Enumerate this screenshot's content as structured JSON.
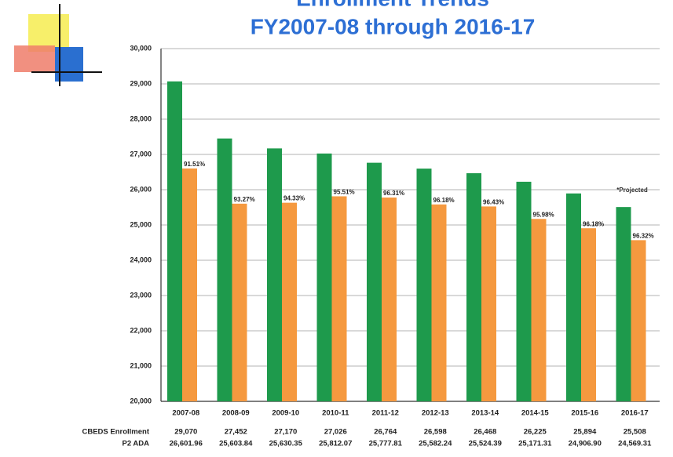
{
  "chart_data": {
    "type": "bar",
    "title": "Enrollment Trends",
    "subtitle": "FY2007-08 through 2016-17",
    "categories": [
      "2007-08",
      "2008-09",
      "2009-10",
      "2010-11",
      "2011-12",
      "2012-13",
      "2013-14",
      "2014-15",
      "2015-16",
      "2016-17"
    ],
    "series": [
      {
        "name": "CBEDS Enrollment",
        "color": "#1e9a4c",
        "values": [
          29070,
          27452,
          27170,
          27026,
          26764,
          26598,
          26468,
          26225,
          25894,
          25508
        ],
        "value_labels": [
          "29,070",
          "27,452",
          "27,170",
          "27,026",
          "26,764",
          "26,598",
          "26,468",
          "26,225",
          "25,894",
          "25,508"
        ]
      },
      {
        "name": "P2 ADA",
        "color": "#f5993f",
        "values": [
          26601.96,
          25603.84,
          25630.35,
          25812.07,
          25777.81,
          25582.24,
          25524.39,
          25171.31,
          24906.9,
          24569.31
        ],
        "value_labels": [
          "26,601.96",
          "25,603.84",
          "25,630.35",
          "25,812.07",
          "25,777.81",
          "25,582.24",
          "25,524.39",
          "25,171.31",
          "24,906.90",
          "24,569.31"
        ]
      }
    ],
    "ratio_labels": [
      "91.51%",
      "93.27%",
      "94.33%",
      "95.51%",
      "96.31%",
      "96.18%",
      "96.43%",
      "95.98%",
      "96.18%",
      "96.32%"
    ],
    "annotation": "*Projected",
    "ylim": [
      20000,
      30000
    ],
    "yticks": [
      {
        "value": 20000,
        "label": "20,000"
      },
      {
        "value": 21000,
        "label": "21,000"
      },
      {
        "value": 22000,
        "label": "22,000"
      },
      {
        "value": 23000,
        "label": "23,000"
      },
      {
        "value": 24000,
        "label": "24,000"
      },
      {
        "value": 25000,
        "label": "25,000"
      },
      {
        "value": 26000,
        "label": "26,000"
      },
      {
        "value": 27000,
        "label": "27,000"
      },
      {
        "value": 28000,
        "label": "28,000"
      },
      {
        "value": 29000,
        "label": "29,000"
      },
      {
        "value": 30000,
        "label": "30,000"
      }
    ],
    "grid": true
  }
}
